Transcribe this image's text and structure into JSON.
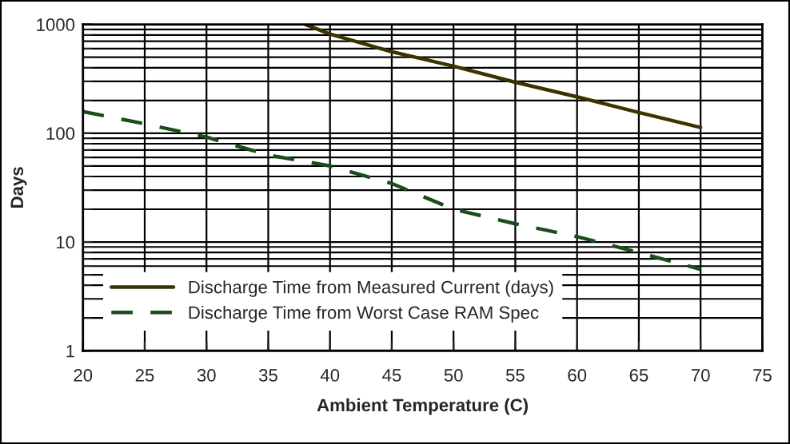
{
  "chart_data": {
    "type": "line",
    "xlabel": "Ambient Temperature (C)",
    "ylabel": "Days",
    "log": "y",
    "grid": true,
    "legend": "bottom left",
    "xlim": [
      20,
      75
    ],
    "xticks": [
      20,
      25,
      30,
      35,
      40,
      45,
      50,
      55,
      60,
      65,
      70,
      75
    ],
    "ylim": [
      1,
      1000
    ],
    "yticks": [
      1,
      10,
      100,
      1000
    ],
    "series": [
      {
        "name": "Discharge Time from Measured Current (days)",
        "color": "#3a3300",
        "line_style": "solid",
        "x": [
          38,
          40,
          45,
          50,
          55,
          60,
          65,
          70
        ],
        "values": [
          1000,
          815,
          561,
          413,
          294,
          216,
          155,
          113
        ]
      },
      {
        "name": "Discharge Time from Worst Case RAM Spec",
        "color": "#1a4d1a",
        "line_style": "dashed",
        "x": [
          20,
          25,
          30,
          35,
          40,
          45,
          50,
          55,
          60,
          65,
          70
        ],
        "values": [
          158,
          122,
          92,
          63,
          50,
          34.5,
          20,
          14.7,
          11.2,
          8,
          5.6
        ]
      }
    ]
  }
}
